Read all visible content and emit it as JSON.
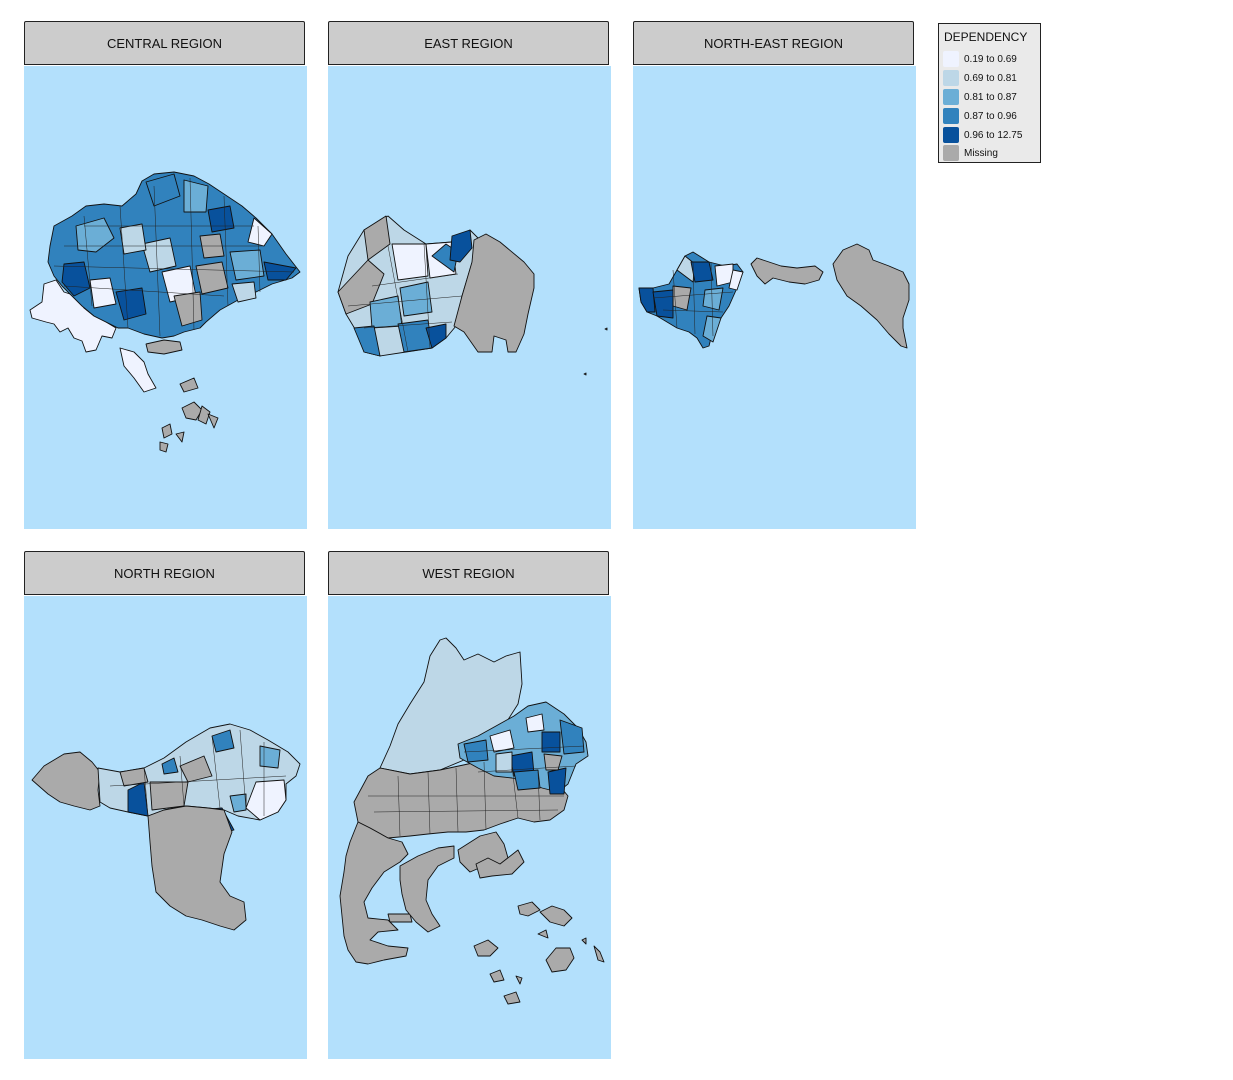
{
  "colors": {
    "sea": "#b3e0fc",
    "strip": "#cccccc",
    "c1": "#eff3ff",
    "c2": "#bdd7e7",
    "c3": "#6baed6",
    "c4": "#3182bd",
    "c5": "#08519c",
    "missing": "#aaaaaa"
  },
  "panels": [
    {
      "title": "CENTRAL REGION"
    },
    {
      "title": "EAST REGION"
    },
    {
      "title": "NORTH-EAST REGION"
    },
    {
      "title": "NORTH REGION"
    },
    {
      "title": "WEST REGION"
    }
  ],
  "legend": {
    "title": "DEPENDENCY",
    "items": [
      {
        "label": "0.19 to 0.69",
        "color": "#eff3ff"
      },
      {
        "label": "0.69 to 0.81",
        "color": "#bdd7e7"
      },
      {
        "label": "0.81 to 0.87",
        "color": "#6baed6"
      },
      {
        "label": "0.87 to 0.96",
        "color": "#3182bd"
      },
      {
        "label": "0.96 to 12.75",
        "color": "#08519c"
      },
      {
        "label": "Missing",
        "color": "#aaaaaa"
      }
    ]
  }
}
